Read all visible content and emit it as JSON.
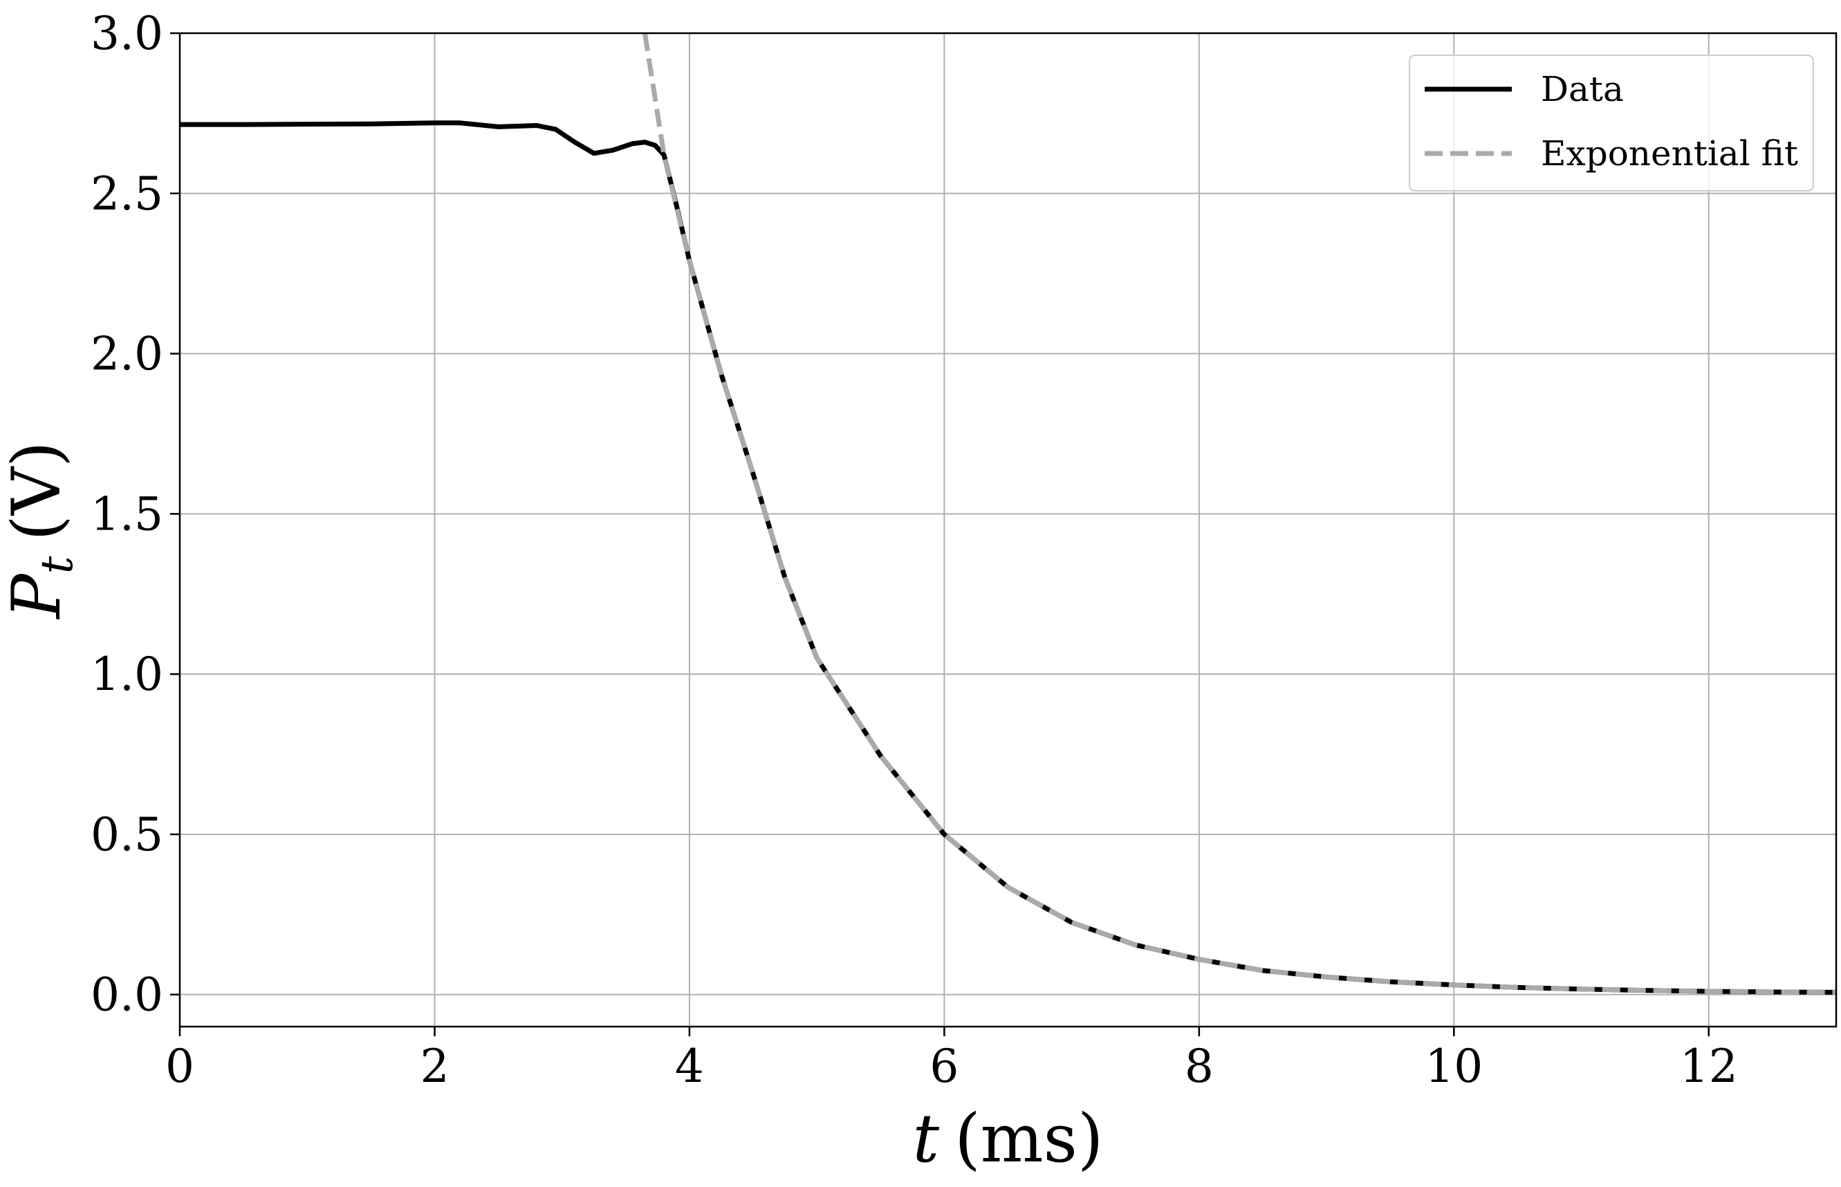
{
  "chart_data": {
    "type": "line",
    "title": "",
    "xlabel": {
      "symbol": "t",
      "unit": "(ms)"
    },
    "ylabel": {
      "symbol": "P",
      "subscript": "t",
      "unit": "(V)"
    },
    "xlim": [
      0,
      13
    ],
    "ylim": [
      -0.1,
      3.0
    ],
    "xticks": [
      0,
      2,
      4,
      6,
      8,
      10,
      12
    ],
    "xtick_labels": [
      "0",
      "2",
      "4",
      "6",
      "8",
      "10",
      "12"
    ],
    "yticks": [
      0.0,
      0.5,
      1.0,
      1.5,
      2.0,
      2.5,
      3.0
    ],
    "ytick_labels": [
      "0.0",
      "0.5",
      "1.0",
      "1.5",
      "2.0",
      "2.5",
      "3.0"
    ],
    "grid": true,
    "legend_position": "top-right",
    "series": [
      {
        "name": "Data",
        "style": "solid",
        "color": "#000000",
        "points": [
          [
            0,
            2.715
          ],
          [
            0.5,
            2.715
          ],
          [
            1.0,
            2.716
          ],
          [
            1.5,
            2.717
          ],
          [
            2.0,
            2.72
          ],
          [
            2.2,
            2.72
          ],
          [
            2.5,
            2.708
          ],
          [
            2.8,
            2.712
          ],
          [
            2.95,
            2.7
          ],
          [
            3.1,
            2.66
          ],
          [
            3.25,
            2.625
          ],
          [
            3.4,
            2.635
          ],
          [
            3.55,
            2.655
          ],
          [
            3.65,
            2.66
          ],
          [
            3.73,
            2.65
          ],
          [
            3.8,
            2.62
          ],
          [
            3.9,
            2.46
          ],
          [
            4.0,
            2.29
          ],
          [
            4.25,
            1.935
          ],
          [
            4.5,
            1.625
          ],
          [
            4.75,
            1.3
          ],
          [
            5.0,
            1.05
          ],
          [
            5.5,
            0.745
          ],
          [
            6.0,
            0.5
          ],
          [
            6.5,
            0.335
          ],
          [
            7.0,
            0.225
          ],
          [
            7.5,
            0.155
          ],
          [
            8.0,
            0.11
          ],
          [
            8.5,
            0.075
          ],
          [
            9.0,
            0.055
          ],
          [
            9.5,
            0.04
          ],
          [
            10.0,
            0.03
          ],
          [
            10.5,
            0.022
          ],
          [
            11.0,
            0.017
          ],
          [
            11.5,
            0.013
          ],
          [
            12.0,
            0.01
          ],
          [
            12.5,
            0.008
          ],
          [
            13.0,
            0.007
          ]
        ]
      },
      {
        "name": "Exponential fit",
        "style": "dashed",
        "color": "#aaaaaa",
        "points": [
          [
            3.65,
            3.0
          ],
          [
            3.8,
            2.62
          ],
          [
            4.0,
            2.29
          ],
          [
            4.25,
            1.935
          ],
          [
            4.5,
            1.625
          ],
          [
            4.75,
            1.3
          ],
          [
            5.0,
            1.05
          ],
          [
            5.5,
            0.745
          ],
          [
            6.0,
            0.5
          ],
          [
            6.5,
            0.335
          ],
          [
            7.0,
            0.225
          ],
          [
            7.5,
            0.155
          ],
          [
            8.0,
            0.11
          ],
          [
            8.5,
            0.075
          ],
          [
            9.0,
            0.055
          ],
          [
            9.5,
            0.04
          ],
          [
            10.0,
            0.03
          ],
          [
            10.5,
            0.022
          ],
          [
            11.0,
            0.017
          ],
          [
            11.5,
            0.013
          ],
          [
            12.0,
            0.01
          ],
          [
            12.5,
            0.008
          ],
          [
            13.0,
            0.007
          ]
        ]
      }
    ]
  }
}
